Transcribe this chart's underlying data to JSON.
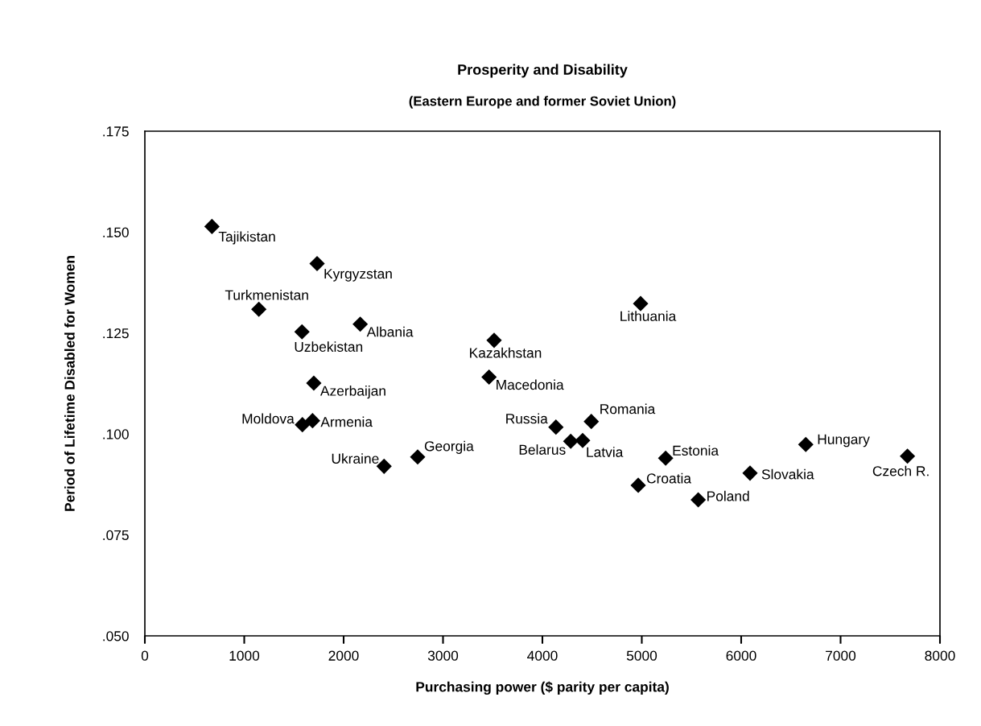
{
  "chart_data": {
    "type": "scatter",
    "title": "Prosperity and Disability",
    "subtitle": "(Eastern Europe and former Soviet Union)",
    "xlabel": "Purchasing power ($ parity per capita)",
    "ylabel": "Period of Lifetime Disabled for Women",
    "marker": "diamond",
    "xlim": [
      0,
      8000
    ],
    "xticks": [
      0,
      1000,
      2000,
      3000,
      4000,
      5000,
      6000,
      7000,
      8000
    ],
    "ylim": [
      0.05,
      0.175
    ],
    "yticks": [
      {
        "value": 0.05,
        "label": ".050"
      },
      {
        "value": 0.075,
        "label": ".075"
      },
      {
        "value": 0.1,
        "label": ".100"
      },
      {
        "value": 0.125,
        "label": ".125"
      },
      {
        "value": 0.15,
        "label": ".150"
      },
      {
        "value": 0.175,
        "label": ".175"
      }
    ],
    "series": [
      {
        "color": "#000000",
        "x": [
          675,
          1733,
          1147,
          1581,
          2167,
          3514,
          1700,
          3463,
          1585,
          1687,
          2407,
          2745,
          4988,
          4136,
          4492,
          4285,
          4405,
          5240,
          4964,
          5568,
          6089,
          6650,
          7673
        ],
        "values": [
          0.1514,
          0.1422,
          0.1309,
          0.1253,
          0.1272,
          0.1232,
          0.1126,
          0.1141,
          0.1023,
          0.1033,
          0.092,
          0.0943,
          0.1323,
          0.1017,
          0.1031,
          0.0982,
          0.0984,
          0.094,
          0.0873,
          0.0837,
          0.0903,
          0.0974,
          0.0945
        ]
      }
    ],
    "annotations": [
      {
        "text": "Tajikistan",
        "x": 675,
        "y": 0.1514
      },
      {
        "text": "Kyrgyzstan",
        "x": 1733,
        "y": 0.1422
      },
      {
        "text": "Turkmenistan",
        "x": 1147,
        "y": 0.1309
      },
      {
        "text": "Uzbekistan",
        "x": 1581,
        "y": 0.1253
      },
      {
        "text": "Albania",
        "x": 2167,
        "y": 0.1272
      },
      {
        "text": "Kazakhstan",
        "x": 3514,
        "y": 0.1232
      },
      {
        "text": "Azerbaijan",
        "x": 1700,
        "y": 0.1126
      },
      {
        "text": "Macedonia",
        "x": 3463,
        "y": 0.1141
      },
      {
        "text": "Moldova",
        "x": 1585,
        "y": 0.1023
      },
      {
        "text": "Armenia",
        "x": 1687,
        "y": 0.1033
      },
      {
        "text": "Ukraine",
        "x": 2407,
        "y": 0.092
      },
      {
        "text": "Georgia",
        "x": 2745,
        "y": 0.0943
      },
      {
        "text": "Lithuania",
        "x": 4988,
        "y": 0.1323
      },
      {
        "text": "Russia",
        "x": 4136,
        "y": 0.1017
      },
      {
        "text": "Romania",
        "x": 4492,
        "y": 0.1031
      },
      {
        "text": "Belarus",
        "x": 4285,
        "y": 0.0982
      },
      {
        "text": "Latvia",
        "x": 4405,
        "y": 0.0984
      },
      {
        "text": "Estonia",
        "x": 5240,
        "y": 0.094
      },
      {
        "text": "Croatia",
        "x": 4964,
        "y": 0.0873
      },
      {
        "text": "Poland",
        "x": 5568,
        "y": 0.0837
      },
      {
        "text": "Slovakia",
        "x": 6089,
        "y": 0.0903
      },
      {
        "text": "Hungary",
        "x": 6650,
        "y": 0.0974
      },
      {
        "text": "Czech R.",
        "x": 7673,
        "y": 0.0945
      }
    ]
  }
}
